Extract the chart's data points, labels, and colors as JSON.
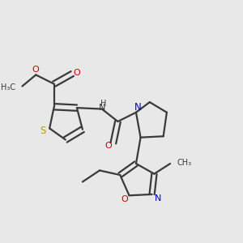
{
  "bg_color": "#e8e8e8",
  "bond_color": "#3a3a3a",
  "sulfur_color": "#b8a000",
  "oxygen_color": "#cc0000",
  "nitrogen_color": "#0000cc",
  "text_color": "#3a3a3a",
  "lw": 1.6,
  "figsize": [
    3.0,
    3.0
  ],
  "dpi": 100,
  "xlim": [
    0,
    10
  ],
  "ylim": [
    0,
    10
  ]
}
